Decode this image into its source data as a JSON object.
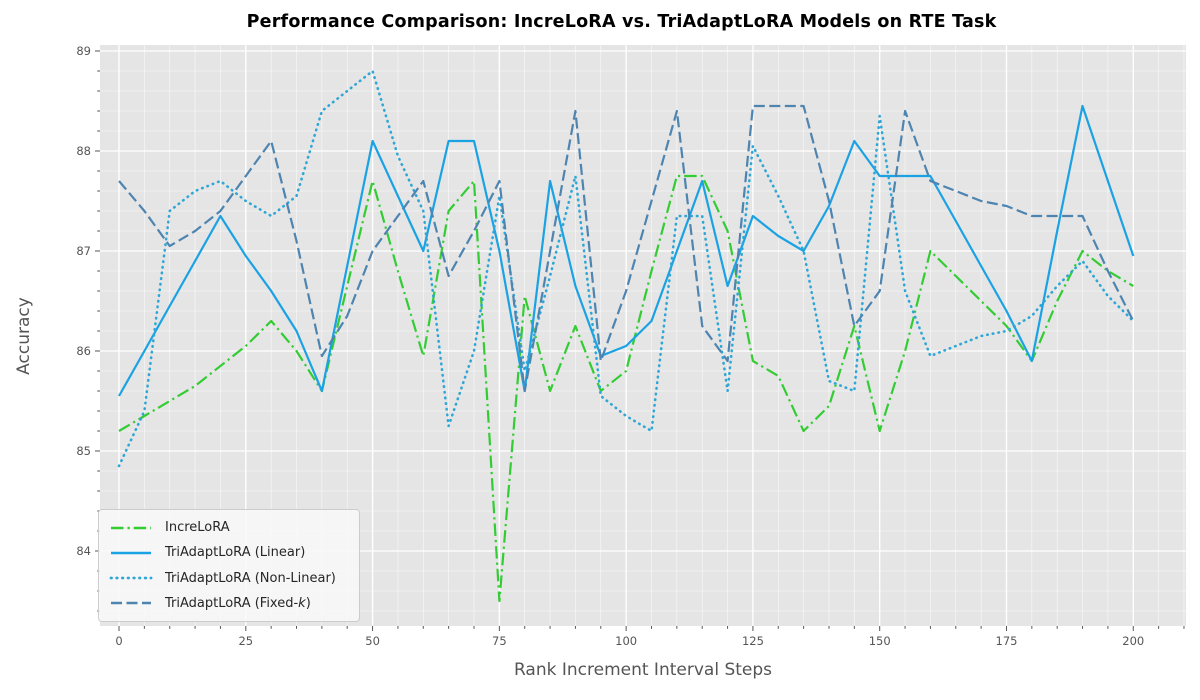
{
  "title": "Performance Comparison: IncreLoRA vs. TriAdaptLoRA Models on RTE Task",
  "chart_data": {
    "type": "line",
    "title": "Performance Comparison: IncreLoRA vs. TriAdaptLoRA Models on RTE Task",
    "xlabel": "Rank Increment Interval Steps",
    "ylabel": "Accuracy",
    "background": "#e5e5e5",
    "grid_color": "#ffffff",
    "tick_color": "#555555",
    "grid": true,
    "legend_position": "lower-left",
    "xlim": [
      -3.75,
      210.4
    ],
    "ylim": [
      83.25,
      89.06
    ],
    "xticks": [
      0,
      25,
      50,
      75,
      100,
      125,
      150,
      175,
      200
    ],
    "yticks": [
      84,
      85,
      86,
      87,
      88,
      89
    ],
    "minor_x_step": 5,
    "minor_y_step": 0.2,
    "x": [
      0,
      5,
      10,
      15,
      20,
      25,
      30,
      35,
      40,
      45,
      50,
      55,
      60,
      65,
      70,
      75,
      80,
      85,
      90,
      95,
      100,
      105,
      110,
      115,
      120,
      125,
      130,
      135,
      140,
      145,
      150,
      155,
      160,
      165,
      170,
      175,
      180,
      185,
      190,
      195,
      200
    ],
    "series": [
      {
        "name": "IncreLoRA",
        "color": "#33cc33",
        "style": "dashdot",
        "values": [
          85.2,
          85.35,
          85.5,
          85.65,
          85.85,
          86.05,
          86.3,
          86.0,
          85.6,
          86.65,
          87.7,
          86.8,
          85.95,
          87.4,
          87.7,
          83.5,
          86.55,
          85.6,
          86.25,
          85.6,
          85.8,
          86.8,
          87.75,
          87.75,
          87.2,
          85.9,
          85.75,
          85.2,
          85.45,
          86.25,
          85.2,
          86.0,
          87.0,
          86.75,
          86.5,
          86.25,
          85.9,
          86.5,
          87.0,
          86.8,
          86.65
        ]
      },
      {
        "name": "TriAdaptLoRA (Linear)",
        "color": "#1aa2e4",
        "style": "solid",
        "values": [
          85.55,
          86.0,
          86.45,
          86.9,
          87.35,
          86.95,
          86.6,
          86.2,
          85.6,
          86.85,
          88.1,
          87.55,
          87.0,
          88.1,
          88.1,
          87.0,
          85.6,
          87.7,
          86.65,
          85.95,
          86.05,
          86.3,
          87.0,
          87.7,
          86.65,
          87.35,
          87.15,
          87.0,
          87.45,
          88.1,
          87.75,
          87.75,
          87.75,
          87.3,
          86.85,
          86.4,
          85.9,
          87.2,
          88.45,
          87.7,
          86.95
        ]
      },
      {
        "name": "TriAdaptLoRA (Non-Linear)",
        "color": "#2ea6d6",
        "style": "dotted",
        "values": [
          84.85,
          85.4,
          87.4,
          87.6,
          87.7,
          87.5,
          87.35,
          87.55,
          88.4,
          88.6,
          88.8,
          87.95,
          87.4,
          85.25,
          86.0,
          87.55,
          85.8,
          86.75,
          87.75,
          85.55,
          85.35,
          85.2,
          87.35,
          87.35,
          85.6,
          88.05,
          87.55,
          87.0,
          85.7,
          85.6,
          88.35,
          86.6,
          85.95,
          86.05,
          86.15,
          86.2,
          86.35,
          86.65,
          86.9,
          86.55,
          86.3
        ]
      },
      {
        "name": "TriAdaptLoRA (Fixed-k)",
        "color": "#4e84b0",
        "style": "dashed",
        "values": [
          87.7,
          87.4,
          87.05,
          87.2,
          87.4,
          87.75,
          88.1,
          87.1,
          85.95,
          86.35,
          87.0,
          87.35,
          87.7,
          86.75,
          87.2,
          87.7,
          85.6,
          87.0,
          88.4,
          85.9,
          86.6,
          87.5,
          88.4,
          86.25,
          85.9,
          88.45,
          88.45,
          88.45,
          87.5,
          86.25,
          86.6,
          88.4,
          87.7,
          87.6,
          87.5,
          87.45,
          87.35,
          87.35,
          87.35,
          86.8,
          86.3
        ]
      }
    ]
  },
  "legend": {
    "items": [
      {
        "label": "IncreLoRA"
      },
      {
        "label": "TriAdaptLoRA (Linear)"
      },
      {
        "label": "TriAdaptLoRA (Non-Linear)"
      },
      {
        "prefix": "TriAdaptLoRA (Fixed-",
        "italic": "k",
        "suffix": ")"
      }
    ]
  }
}
